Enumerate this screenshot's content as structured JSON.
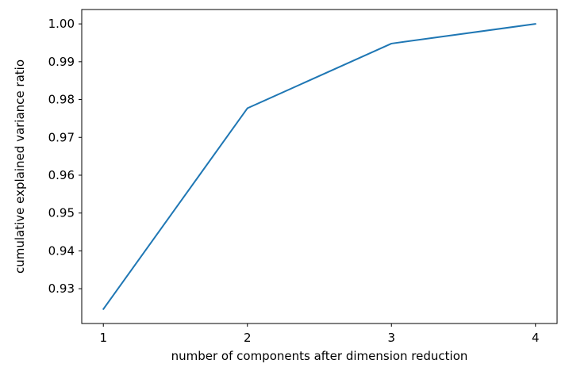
{
  "chart_data": {
    "type": "line",
    "title": "",
    "xlabel": "number of components after dimension reduction",
    "ylabel": "cumulative explained variance ratio",
    "x": [
      1,
      2,
      3,
      4
    ],
    "values": [
      0.9246,
      0.9777,
      0.9948,
      1.0
    ],
    "series_name": "cumulative explained variance ratio",
    "xticks": [
      1,
      2,
      3,
      4
    ],
    "xtick_labels": [
      "1",
      "2",
      "3",
      "4"
    ],
    "yticks": [
      0.93,
      0.94,
      0.95,
      0.96,
      0.97,
      0.98,
      0.99,
      1.0
    ],
    "ytick_labels": [
      "0.93",
      "0.94",
      "0.95",
      "0.96",
      "0.97",
      "0.98",
      "0.99",
      "1.00"
    ],
    "xlim": [
      0.85,
      4.15
    ],
    "ylim": [
      0.9208,
      1.0038
    ],
    "grid": false,
    "legend": null,
    "line_color": "#1f77b4",
    "axis_color": "#000000",
    "text_color": "#000000"
  }
}
